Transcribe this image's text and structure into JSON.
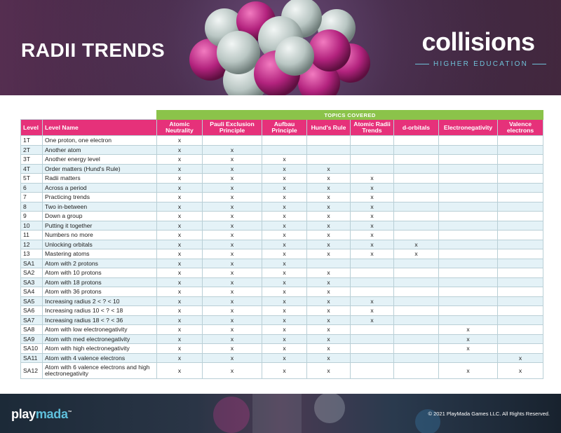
{
  "header": {
    "title": "RADII TRENDS",
    "brand_name": "collisions",
    "brand_tagline": "HIGHER EDUCATION"
  },
  "table": {
    "topics_label": "TOPICS COVERED",
    "columns": [
      "Level",
      "Level Name",
      "Atomic Neutrality",
      "Pauli Exclusion Principle",
      "Aufbau Principle",
      "Hund's Rule",
      "Atomic Radii Trends",
      "d-orbitals",
      "Electronegativity",
      "Valence electrons"
    ],
    "rows": [
      {
        "level": "1T",
        "name": "One proton, one electron",
        "marks": [
          "x",
          "",
          "",
          "",
          "",
          "",
          "",
          ""
        ]
      },
      {
        "level": "2T",
        "name": "Another atom",
        "marks": [
          "x",
          "x",
          "",
          "",
          "",
          "",
          "",
          ""
        ]
      },
      {
        "level": "3T",
        "name": "Another energy level",
        "marks": [
          "x",
          "x",
          "x",
          "",
          "",
          "",
          "",
          ""
        ]
      },
      {
        "level": "4T",
        "name": "Order matters (Hund's Rule)",
        "marks": [
          "x",
          "x",
          "x",
          "x",
          "",
          "",
          "",
          ""
        ]
      },
      {
        "level": "5T",
        "name": "Radii matters",
        "marks": [
          "x",
          "x",
          "x",
          "x",
          "x",
          "",
          "",
          ""
        ]
      },
      {
        "level": "6",
        "name": "Across a period",
        "marks": [
          "x",
          "x",
          "x",
          "x",
          "x",
          "",
          "",
          ""
        ]
      },
      {
        "level": "7",
        "name": "Practicing trends",
        "marks": [
          "x",
          "x",
          "x",
          "x",
          "x",
          "",
          "",
          ""
        ]
      },
      {
        "level": "8",
        "name": "Two in-between",
        "marks": [
          "x",
          "x",
          "x",
          "x",
          "x",
          "",
          "",
          ""
        ]
      },
      {
        "level": "9",
        "name": "Down a group",
        "marks": [
          "x",
          "x",
          "x",
          "x",
          "x",
          "",
          "",
          ""
        ]
      },
      {
        "level": "10",
        "name": "Putting it together",
        "marks": [
          "x",
          "x",
          "x",
          "x",
          "x",
          "",
          "",
          ""
        ]
      },
      {
        "level": "11",
        "name": "Numbers no more",
        "marks": [
          "x",
          "x",
          "x",
          "x",
          "x",
          "",
          "",
          ""
        ]
      },
      {
        "level": "12",
        "name": "Unlocking orbitals",
        "marks": [
          "x",
          "x",
          "x",
          "x",
          "x",
          "x",
          "",
          ""
        ]
      },
      {
        "level": "13",
        "name": "Mastering atoms",
        "marks": [
          "x",
          "x",
          "x",
          "x",
          "x",
          "x",
          "",
          ""
        ]
      },
      {
        "level": "SA1",
        "name": "Atom with 2 protons",
        "marks": [
          "x",
          "x",
          "x",
          "",
          "",
          "",
          "",
          ""
        ]
      },
      {
        "level": "SA2",
        "name": "Atom with 10 protons",
        "marks": [
          "x",
          "x",
          "x",
          "x",
          "",
          "",
          "",
          ""
        ]
      },
      {
        "level": "SA3",
        "name": "Atom with 18 protons",
        "marks": [
          "x",
          "x",
          "x",
          "x",
          "",
          "",
          "",
          ""
        ]
      },
      {
        "level": "SA4",
        "name": "Atom with 36 protons",
        "marks": [
          "x",
          "x",
          "x",
          "x",
          "",
          "",
          "",
          ""
        ]
      },
      {
        "level": "SA5",
        "name": "Increasing radius 2 < ? < 10",
        "marks": [
          "x",
          "x",
          "x",
          "x",
          "x",
          "",
          "",
          ""
        ]
      },
      {
        "level": "SA6",
        "name": "Increasing radius 10 < ? < 18",
        "marks": [
          "x",
          "x",
          "x",
          "x",
          "x",
          "",
          "",
          ""
        ]
      },
      {
        "level": "SA7",
        "name": "Increasing radius 18 < ? < 36",
        "marks": [
          "x",
          "x",
          "x",
          "x",
          "x",
          "",
          "",
          ""
        ]
      },
      {
        "level": "SA8",
        "name": "Atom with low electronegativity",
        "marks": [
          "x",
          "x",
          "x",
          "x",
          "",
          "",
          "x",
          ""
        ]
      },
      {
        "level": "SA9",
        "name": "Atom with med electronegativity",
        "marks": [
          "x",
          "x",
          "x",
          "x",
          "",
          "",
          "x",
          ""
        ]
      },
      {
        "level": "SA10",
        "name": "Atom with high electronegativity",
        "marks": [
          "x",
          "x",
          "x",
          "x",
          "",
          "",
          "x",
          ""
        ]
      },
      {
        "level": "SA11",
        "name": "Atom with 4 valence electrons",
        "marks": [
          "x",
          "x",
          "x",
          "x",
          "",
          "",
          "",
          "x"
        ]
      },
      {
        "level": "SA12",
        "name": "Atom with 6 valence electrons and high electronegativity",
        "marks": [
          "x",
          "x",
          "x",
          "x",
          "",
          "",
          "x",
          "x"
        ]
      }
    ]
  },
  "footer": {
    "logo_main": "play",
    "logo_accent": "mada",
    "logo_tm": "™",
    "copyright": "© 2021 PlayMada Games LLC. All Rights Reserved."
  },
  "colors": {
    "header_pink": "#e6317a",
    "topics_green": "#8bc34a",
    "row_alt": "#e4f2f7",
    "accent_blue": "#6fc1d8"
  }
}
